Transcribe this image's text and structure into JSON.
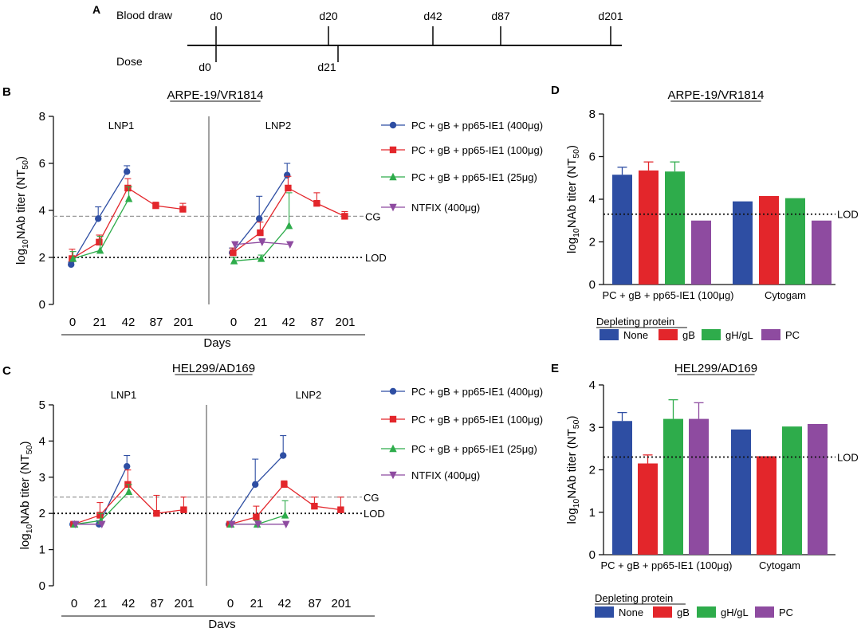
{
  "colors": {
    "blue": "#2e4ea3",
    "red": "#e3262b",
    "green": "#2eac4b",
    "purple": "#8e4ba0",
    "lod_line": "#111111",
    "cg_line": "#9a9a9a",
    "axis": "#111111"
  },
  "panel_a": {
    "label": "A",
    "blood_draw_label": "Blood draw",
    "dose_label": "Dose",
    "blood_draw_days": [
      "d0",
      "d20",
      "d42",
      "d87",
      "d201"
    ],
    "dose_days": [
      "d0",
      "d21"
    ]
  },
  "panel_labels": {
    "b": "B",
    "c": "C",
    "d": "D",
    "e": "E"
  },
  "legend_line": [
    {
      "name": "PC + gB + pp65-IE1 (400μg)",
      "color": "blue",
      "marker": "circle"
    },
    {
      "name": "PC + gB + pp65-IE1 (100μg)",
      "color": "red",
      "marker": "square"
    },
    {
      "name": "PC + gB + pp65-IE1 (25μg)",
      "color": "green",
      "marker": "triangle"
    },
    {
      "name": "NTFIX (400μg)",
      "color": "purple",
      "marker": "triangle-down"
    }
  ],
  "legend_bar": {
    "title": "Depleting protein",
    "items": [
      {
        "name": "None",
        "color": "blue"
      },
      {
        "name": "gB",
        "color": "red"
      },
      {
        "name": "gH/gL",
        "color": "green"
      },
      {
        "name": "PC",
        "color": "purple"
      }
    ]
  },
  "chart_data": [
    {
      "id": "B",
      "type": "line",
      "title": "ARPE-19/VR1814",
      "ylabel": "log10NAb titer (NT50)",
      "xlabel": "Days",
      "ylim": [
        0,
        8
      ],
      "yticks": [
        0,
        2,
        4,
        6,
        8
      ],
      "groups": [
        "LNP1",
        "LNP2"
      ],
      "x": [
        "0",
        "21",
        "42",
        "87",
        "201"
      ],
      "lod": 2.0,
      "lod_label": "LOD",
      "cg": 3.75,
      "cg_label": "CG",
      "panels": [
        {
          "group": "LNP1",
          "series": [
            {
              "name": "PC + gB + pp65-IE1 (400μg)",
              "color": "blue",
              "marker": "circle",
              "values": [
                1.7,
                3.65,
                5.65,
                null,
                null
              ],
              "errors": [
                0.1,
                0.5,
                0.25,
                null,
                null
              ]
            },
            {
              "name": "PC + gB + pp65-IE1 (100μg)",
              "color": "red",
              "marker": "square",
              "values": [
                1.95,
                2.65,
                4.95,
                4.2,
                4.05
              ],
              "errors": [
                0.4,
                0.3,
                0.4,
                0.15,
                0.25
              ]
            },
            {
              "name": "PC + gB + pp65-IE1 (25μg)",
              "color": "green",
              "marker": "triangle",
              "values": [
                1.95,
                2.3,
                4.5,
                null,
                null
              ],
              "errors": [
                0.3,
                0.6,
                0.5,
                null,
                null
              ]
            },
            {
              "name": "NTFIX (400μg)",
              "color": "purple",
              "marker": "triangle-down",
              "values": [
                null,
                null,
                null,
                null,
                null
              ],
              "errors": [
                null,
                null,
                null,
                null,
                null
              ]
            }
          ]
        },
        {
          "group": "LNP2",
          "series": [
            {
              "name": "PC + gB + pp65-IE1 (400μg)",
              "color": "blue",
              "marker": "circle",
              "values": [
                2.2,
                3.65,
                5.5,
                null,
                null
              ],
              "errors": [
                0.2,
                0.95,
                0.5,
                null,
                null
              ]
            },
            {
              "name": "PC + gB + pp65-IE1 (100μg)",
              "color": "red",
              "marker": "square",
              "values": [
                2.2,
                3.05,
                4.95,
                4.3,
                3.75
              ],
              "errors": [
                0.2,
                0.45,
                0.5,
                0.45,
                0.2
              ]
            },
            {
              "name": "PC + gB + pp65-IE1 (25μg)",
              "color": "green",
              "marker": "triangle",
              "values": [
                1.85,
                1.95,
                3.35,
                null,
                null
              ],
              "errors": [
                0.15,
                0.15,
                1.4,
                null,
                null
              ]
            },
            {
              "name": "NTFIX (400μg)",
              "color": "purple",
              "marker": "triangle-down",
              "values": [
                2.55,
                2.65,
                2.55,
                null,
                null
              ],
              "errors": [
                0.1,
                0.15,
                0.1,
                null,
                null
              ]
            }
          ]
        }
      ]
    },
    {
      "id": "C",
      "type": "line",
      "title": "HEL299/AD169",
      "ylabel": "log10NAb titer (NT50)",
      "xlabel": "Days",
      "ylim": [
        0,
        5
      ],
      "yticks": [
        0,
        1,
        2,
        3,
        4,
        5
      ],
      "groups": [
        "LNP1",
        "LNP2"
      ],
      "x": [
        "0",
        "21",
        "42",
        "87",
        "201"
      ],
      "lod": 2.0,
      "lod_label": "LOD",
      "cg": 2.45,
      "cg_label": "CG",
      "panels": [
        {
          "group": "LNP1",
          "series": [
            {
              "name": "PC + gB + pp65-IE1 (400μg)",
              "color": "blue",
              "marker": "circle",
              "values": [
                1.7,
                1.7,
                3.3,
                null,
                null
              ],
              "errors": [
                0.0,
                0.1,
                0.3,
                null,
                null
              ]
            },
            {
              "name": "PC + gB + pp65-IE1 (100μg)",
              "color": "red",
              "marker": "square",
              "values": [
                1.7,
                1.95,
                2.8,
                2.0,
                2.1
              ],
              "errors": [
                0.0,
                0.35,
                0.4,
                0.5,
                0.35
              ]
            },
            {
              "name": "PC + gB + pp65-IE1 (25μg)",
              "color": "green",
              "marker": "triangle",
              "values": [
                1.7,
                1.8,
                2.6,
                null,
                null
              ],
              "errors": [
                0.0,
                0.2,
                0.2,
                null,
                null
              ]
            },
            {
              "name": "NTFIX (400μg)",
              "color": "purple",
              "marker": "triangle-down",
              "values": [
                1.7,
                1.7,
                null,
                null,
                null
              ],
              "errors": [
                0.0,
                0.0,
                null,
                null,
                null
              ]
            }
          ]
        },
        {
          "group": "LNP2",
          "series": [
            {
              "name": "PC + gB + pp65-IE1 (400μg)",
              "color": "blue",
              "marker": "circle",
              "values": [
                1.7,
                2.8,
                3.6,
                null,
                null
              ],
              "errors": [
                0.0,
                0.7,
                0.55,
                null,
                null
              ]
            },
            {
              "name": "PC + gB + pp65-IE1 (100μg)",
              "color": "red",
              "marker": "square",
              "values": [
                1.7,
                1.9,
                2.8,
                2.2,
                2.1
              ],
              "errors": [
                0.0,
                0.3,
                0.1,
                0.25,
                0.35
              ]
            },
            {
              "name": "PC + gB + pp65-IE1 (25μg)",
              "color": "green",
              "marker": "triangle",
              "values": [
                1.7,
                1.7,
                1.95,
                null,
                null
              ],
              "errors": [
                0.0,
                0.1,
                0.4,
                null,
                null
              ]
            },
            {
              "name": "NTFIX (400μg)",
              "color": "purple",
              "marker": "triangle-down",
              "values": [
                1.7,
                1.7,
                1.7,
                null,
                null
              ],
              "errors": [
                0.0,
                0.0,
                0.0,
                null,
                null
              ]
            }
          ]
        }
      ]
    },
    {
      "id": "D",
      "type": "bar",
      "title": "ARPE-19/VR1814",
      "ylabel": "log10NAb titer (NT50)",
      "ylim": [
        0,
        8
      ],
      "yticks": [
        0,
        2,
        4,
        6,
        8
      ],
      "lod": 3.3,
      "lod_label": "LOD",
      "categories": [
        "PC + gB + pp65-IE1 (100μg)",
        "Cytogam"
      ],
      "series": [
        {
          "name": "None",
          "color": "blue",
          "values": [
            5.15,
            3.9
          ],
          "errors": [
            0.35,
            null
          ]
        },
        {
          "name": "gB",
          "color": "red",
          "values": [
            5.35,
            4.15
          ],
          "errors": [
            0.4,
            null
          ]
        },
        {
          "name": "gH/gL",
          "color": "green",
          "values": [
            5.3,
            4.05
          ],
          "errors": [
            0.45,
            null
          ]
        },
        {
          "name": "PC",
          "color": "purple",
          "values": [
            3.0,
            3.0
          ],
          "errors": [
            null,
            null
          ]
        }
      ]
    },
    {
      "id": "E",
      "type": "bar",
      "title": "HEL299/AD169",
      "ylabel": "log10NAb titer (NT50)",
      "ylim": [
        0,
        4
      ],
      "yticks": [
        0,
        1,
        2,
        3,
        4
      ],
      "lod": 2.3,
      "lod_label": "LOD",
      "categories": [
        "PC + gB + pp65-IE1 (100μg)",
        "Cytogam"
      ],
      "series": [
        {
          "name": "None",
          "color": "blue",
          "values": [
            3.15,
            2.95
          ],
          "errors": [
            0.2,
            null
          ]
        },
        {
          "name": "gB",
          "color": "red",
          "values": [
            2.15,
            2.32
          ],
          "errors": [
            0.2,
            null
          ]
        },
        {
          "name": "gH/gL",
          "color": "green",
          "values": [
            3.2,
            3.02
          ],
          "errors": [
            0.45,
            null
          ]
        },
        {
          "name": "PC",
          "color": "purple",
          "values": [
            3.2,
            3.08
          ],
          "errors": [
            0.38,
            null
          ]
        }
      ]
    }
  ]
}
